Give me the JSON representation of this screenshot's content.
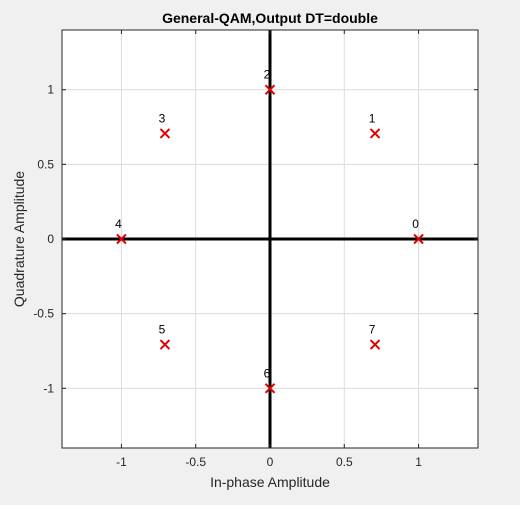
{
  "chart_data": {
    "type": "scatter",
    "title": "General-QAM,Output DT=double",
    "xlabel": "In-phase Amplitude",
    "ylabel": "Quadrature Amplitude",
    "xlim": [
      -1.4,
      1.4
    ],
    "ylim": [
      -1.4,
      1.4
    ],
    "xticks": [
      -1,
      -0.5,
      0,
      0.5,
      1
    ],
    "xtick_labels": [
      "-1",
      "-0.5",
      "0",
      "0.5",
      "1"
    ],
    "yticks": [
      -1,
      -0.5,
      0,
      0.5,
      1
    ],
    "ytick_labels": [
      "-1",
      "-0.5",
      "0",
      "0.5",
      "1"
    ],
    "grid": true,
    "marker": "x",
    "marker_color": "#e00000",
    "points": [
      {
        "label": "0",
        "x": 1,
        "y": 0
      },
      {
        "label": "1",
        "x": 0.7071,
        "y": 0.7071
      },
      {
        "label": "2",
        "x": 0,
        "y": 1
      },
      {
        "label": "3",
        "x": -0.7071,
        "y": 0.7071
      },
      {
        "label": "4",
        "x": -1,
        "y": 0
      },
      {
        "label": "5",
        "x": -0.7071,
        "y": -0.7071
      },
      {
        "label": "6",
        "x": 0,
        "y": -1
      },
      {
        "label": "7",
        "x": 0.7071,
        "y": -0.7071
      }
    ]
  }
}
